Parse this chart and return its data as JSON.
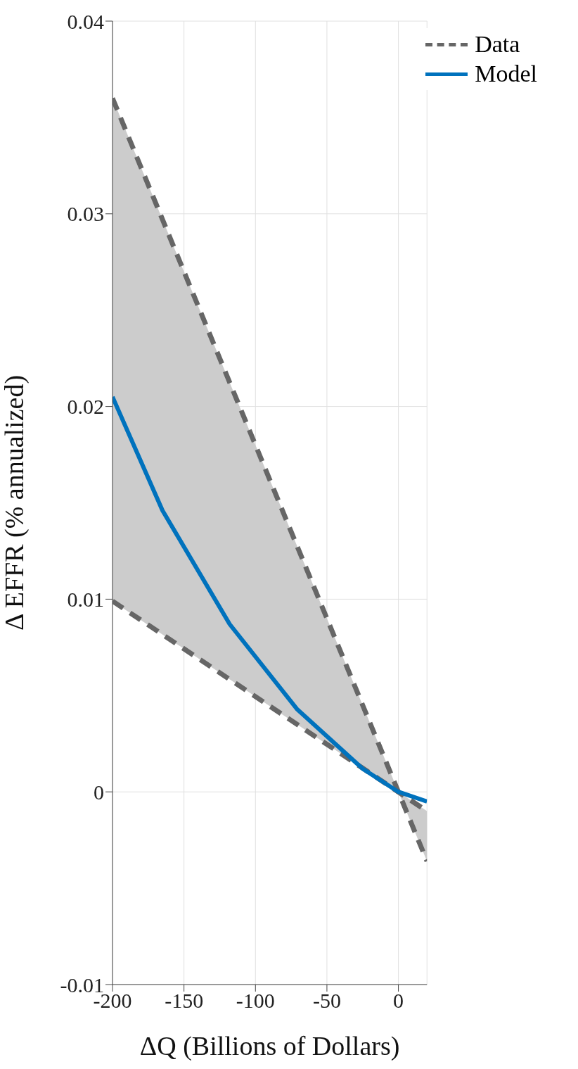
{
  "chart_data": {
    "type": "line",
    "xlabel": "ΔQ (Billions of Dollars)",
    "ylabel": "Δ EFFR (% annualized)",
    "xlim": [
      -200,
      20
    ],
    "xticks": [
      -200,
      -150,
      -100,
      -50,
      0
    ],
    "ylim": [
      -0.01,
      0.04
    ],
    "yticks": [
      -0.01,
      0,
      0.01,
      0.02,
      0.03,
      0.04
    ],
    "grid": true,
    "legend": "top right",
    "series": [
      {
        "name": "Data",
        "type": "line",
        "color": "#666666",
        "line_style": "dashed",
        "x": [
          -200,
          20
        ],
        "values": [
          0.036,
          -0.0036
        ],
        "lower": [
          0.0099,
          -0.001
        ],
        "upper": [
          0.036,
          -0.0036
        ]
      },
      {
        "color": "#666666",
        "line_style": "dashed",
        "x": [
          -200,
          20
        ],
        "values": [
          0.0099,
          -0.001
        ]
      },
      {
        "name": "Model",
        "color": "#0072bd",
        "line_style": "solid",
        "x": [
          -200,
          -165,
          -118,
          -71,
          -25,
          0,
          20
        ],
        "values": [
          0.0205,
          0.0146,
          0.0087,
          0.0043,
          0.0012,
          0,
          -0.0005
        ]
      }
    ]
  }
}
